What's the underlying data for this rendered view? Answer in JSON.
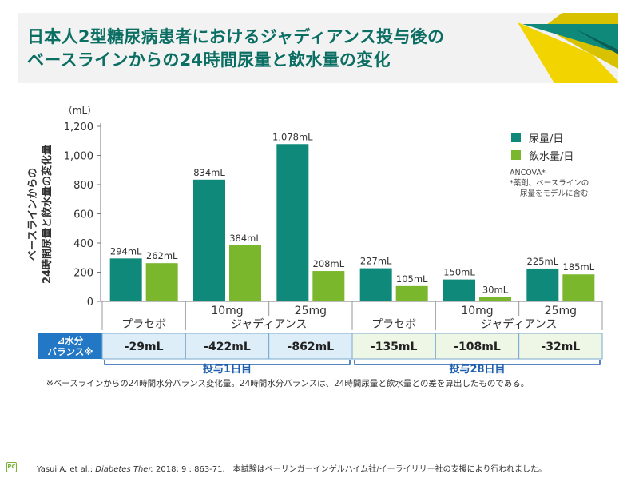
{
  "title_line1": "日本人2型糖尿病患者におけるジャディアンス投与後の",
  "title_line2": "ベースラインからの24時間尿量と飲水量の変化",
  "colors": {
    "urine": "#0f8a7a",
    "water": "#7ab72c",
    "title": "#0a6e63",
    "period": "#1d5fae",
    "balance_label_bg": "#2278c4",
    "balance_day1_bg": "#ddeef8",
    "balance_day28_bg": "#eef6e6"
  },
  "legend": {
    "urine_label": "尿量/日",
    "water_label": "飲水量/日"
  },
  "ancova": {
    "line1": "ANCOVA*",
    "line2": "*薬剤、ベースラインの",
    "line3": "尿量をモデルに含む"
  },
  "footnote": "※ベースラインからの24時間水分バランス変化量。24時間水分バランスは、24時間尿量と飲水量との差を算出したものである。",
  "citation": {
    "authors": "Yasui A. et al.: ",
    "journal": "Diabetes Ther.",
    "rest": " 2018; 9 : 863-71.　本試験はベーリンガーインゲルハイム社/イーライリリー社の支援により行われました。"
  },
  "logo_text": "PC",
  "chart_data": {
    "type": "bar",
    "ylabel_line1": "ベースラインからの",
    "ylabel_line2": "24時間尿量と飲水量の変化量",
    "yunit": "（mL）",
    "ylim": [
      0,
      1200
    ],
    "yticks": [
      0,
      200,
      400,
      600,
      800,
      1000,
      1200
    ],
    "ytick_labels": [
      "0",
      "200",
      "400",
      "600",
      "800",
      "1,000",
      "1,200"
    ],
    "groups": [
      {
        "dose": "",
        "arm": "プラセボ",
        "urine": 294,
        "water": 262,
        "urine_label": "294mL",
        "water_label": "262mL"
      },
      {
        "dose": "10mg",
        "arm": "ジャディアンス",
        "urine": 834,
        "water": 384,
        "urine_label": "834mL",
        "water_label": "384mL"
      },
      {
        "dose": "25mg",
        "arm": "",
        "urine": 1078,
        "water": 208,
        "urine_label": "1,078mL",
        "water_label": "208mL"
      },
      {
        "dose": "",
        "arm": "プラセボ",
        "urine": 227,
        "water": 105,
        "urine_label": "227mL",
        "water_label": "105mL"
      },
      {
        "dose": "10mg",
        "arm": "ジャディアンス",
        "urine": 150,
        "water": 30,
        "urine_label": "150mL",
        "water_label": "30mL"
      },
      {
        "dose": "25mg",
        "arm": "",
        "urine": 225,
        "water": 185,
        "urine_label": "225mL",
        "water_label": "185mL"
      }
    ],
    "series": [
      {
        "name": "尿量/日",
        "values": [
          294,
          834,
          1078,
          227,
          150,
          225
        ]
      },
      {
        "name": "飲水量/日",
        "values": [
          262,
          384,
          208,
          105,
          30,
          185
        ]
      }
    ],
    "balance_label_line1": "⊿水分",
    "balance_label_line2": "バランス※",
    "balance": [
      "-29mL",
      "-422mL",
      "-862mL",
      "-135mL",
      "-108mL",
      "-32mL"
    ],
    "periods": [
      "投与1日目",
      "投与28日目"
    ],
    "legend_position": "top-right"
  }
}
